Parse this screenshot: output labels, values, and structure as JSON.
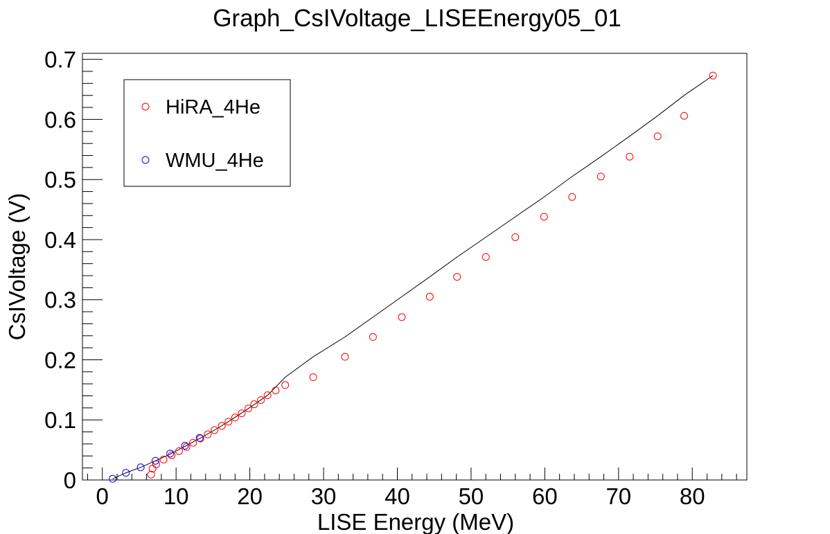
{
  "chart_data": {
    "type": "scatter",
    "title": "Graph_CsIVoltage_LISEEnergy05_01",
    "xlabel": "LISE Energy (MeV)",
    "ylabel": "CsIVoltage (V)",
    "xlim": [
      -2.7,
      87.4
    ],
    "ylim": [
      0,
      0.71
    ],
    "xticks": [
      0,
      10,
      20,
      30,
      40,
      50,
      60,
      70,
      80
    ],
    "yticks": [
      0,
      0.1,
      0.2,
      0.3,
      0.4,
      0.5,
      0.6,
      0.7
    ],
    "xtick_labels": [
      "0",
      "10",
      "20",
      "30",
      "40",
      "50",
      "60",
      "70",
      "80"
    ],
    "ytick_labels": [
      "0",
      "0.1",
      "0.2",
      "0.3",
      "0.4",
      "0.5",
      "0.6",
      "0.7"
    ],
    "grid": false,
    "legend_position": "top-left",
    "series": [
      {
        "name": "HiRA_4He",
        "color": "#ff0000",
        "marker": "open-circle",
        "x": [
          6.6,
          6.8,
          7.3,
          8.3,
          9.4,
          10.4,
          11.4,
          12.3,
          13.3,
          14.3,
          15.2,
          16.2,
          17.1,
          18.0,
          18.9,
          19.8,
          20.6,
          21.5,
          22.4,
          23.5,
          24.8,
          28.6,
          32.9,
          36.7,
          40.6,
          44.4,
          48.1,
          52.0,
          56.0,
          59.9,
          63.7,
          67.6,
          71.5,
          75.3,
          78.9,
          82.8
        ],
        "y": [
          0.009,
          0.019,
          0.026,
          0.034,
          0.041,
          0.048,
          0.055,
          0.062,
          0.069,
          0.076,
          0.083,
          0.09,
          0.097,
          0.104,
          0.111,
          0.119,
          0.126,
          0.133,
          0.141,
          0.149,
          0.158,
          0.171,
          0.205,
          0.238,
          0.271,
          0.305,
          0.338,
          0.371,
          0.404,
          0.438,
          0.471,
          0.505,
          0.538,
          0.572,
          0.606,
          0.673
        ]
      },
      {
        "name": "WMU_4He",
        "color": "#0000ff",
        "marker": "open-circle",
        "x": [
          1.4,
          3.2,
          5.2,
          7.2,
          9.2,
          11.2,
          13.2
        ],
        "y": [
          0.002,
          0.012,
          0.021,
          0.032,
          0.044,
          0.057,
          0.07
        ]
      }
    ],
    "fit_line": {
      "color": "#000000",
      "x": [
        1.4,
        3.2,
        5.2,
        7.2,
        9.2,
        11.2,
        13.2,
        15.2,
        17.1,
        19.8,
        22.4,
        24.8,
        28.6,
        32.9,
        36.7,
        40.6,
        44.4,
        48.1,
        52.0,
        56.0,
        59.9,
        63.7,
        67.6,
        71.5,
        75.3,
        78.9,
        82.8
      ],
      "y": [
        0.002,
        0.012,
        0.021,
        0.032,
        0.043,
        0.056,
        0.069,
        0.083,
        0.097,
        0.119,
        0.141,
        0.171,
        0.205,
        0.238,
        0.271,
        0.305,
        0.338,
        0.371,
        0.404,
        0.438,
        0.471,
        0.505,
        0.538,
        0.572,
        0.606,
        0.64,
        0.673
      ]
    }
  }
}
